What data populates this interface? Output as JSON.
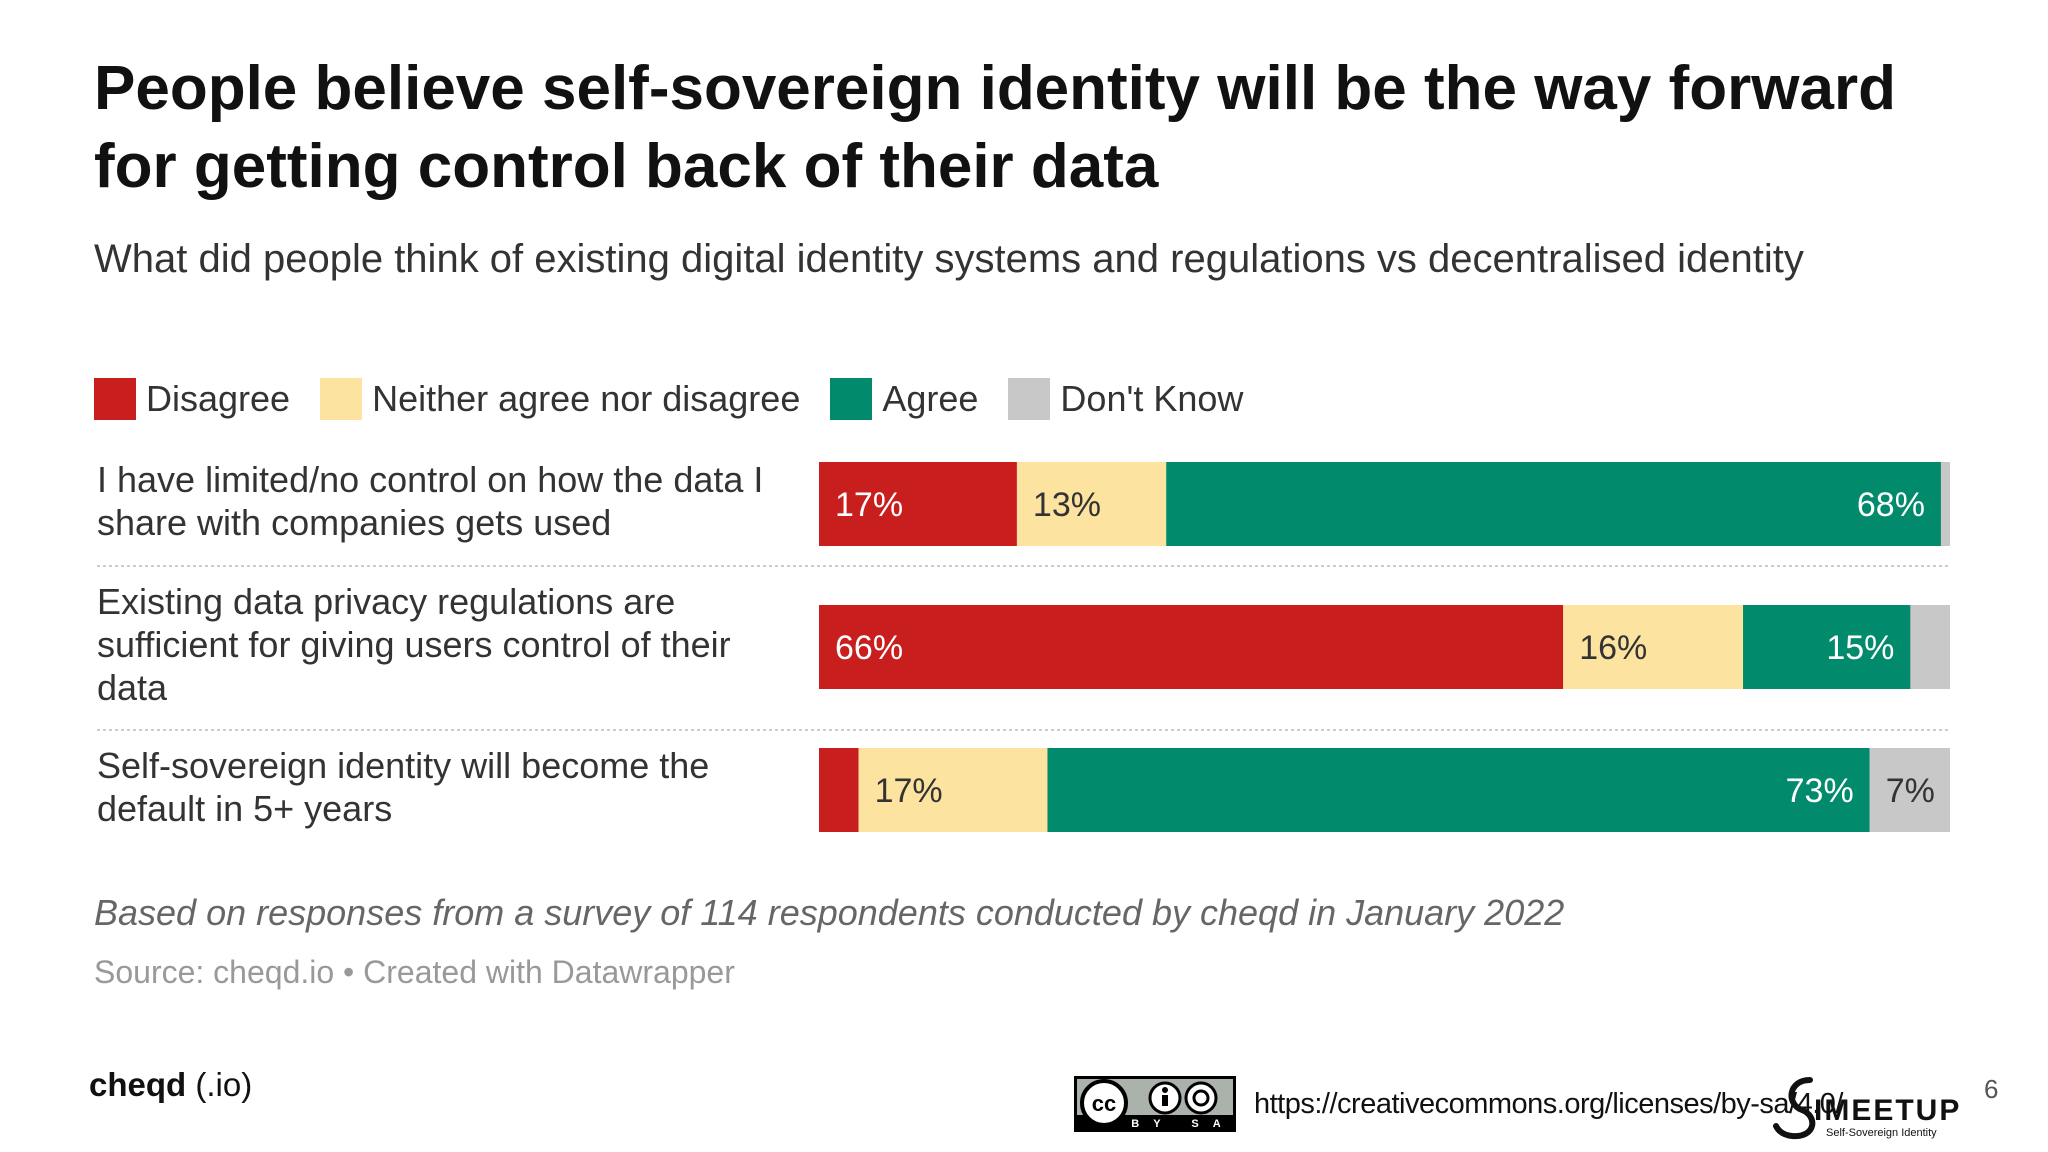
{
  "title": "People believe self-sovereign identity will be the way forward for getting control back of their data",
  "subtitle": "What did people think of existing digital identity systems and regulations vs decentralised identity",
  "chart_data": {
    "type": "bar",
    "orientation": "horizontal",
    "stacked": true,
    "legend_position": "top",
    "series": [
      {
        "name": "Disagree",
        "color": "#c81e1e"
      },
      {
        "name": "Neither agree nor disagree",
        "color": "#fce3a0"
      },
      {
        "name": "Agree",
        "color": "#028a6c"
      },
      {
        "name": "Don't Know",
        "color": "#c8c8c8"
      }
    ],
    "rows": [
      {
        "label": "I have limited/no control on how the data I share with companies gets used",
        "values": [
          17.5,
          13.2,
          68.5,
          0.8
        ],
        "labels": [
          "17%",
          "13%",
          "68%",
          ""
        ]
      },
      {
        "label": "Existing data privacy regulations are sufficient for giving users control of their data",
        "values": [
          65.8,
          15.9,
          14.8,
          3.5
        ],
        "labels": [
          "66%",
          "16%",
          "15%",
          ""
        ]
      },
      {
        "label": "Self-sovereign identity will become the default in 5+ years",
        "values": [
          3.5,
          16.7,
          72.7,
          7.1
        ],
        "labels": [
          "",
          "17%",
          "73%",
          "7%"
        ]
      }
    ],
    "xlim": [
      0,
      100
    ]
  },
  "note": "Based on responses from a survey of 114 respondents conducted by cheqd in January 2022",
  "source": "Source: cheqd.io • Created with Datawrapper",
  "footer": {
    "brand_name": "cheqd",
    "brand_suffix": "(.io)",
    "license_badge_text": "BY SA",
    "license_url": "https://creativecommons.org/licenses/by-sa/4.0/",
    "meetup_logo_text": "IMEETUP",
    "meetup_logo_subtext": "Self-Sovereign Identity",
    "page_number": "6"
  }
}
